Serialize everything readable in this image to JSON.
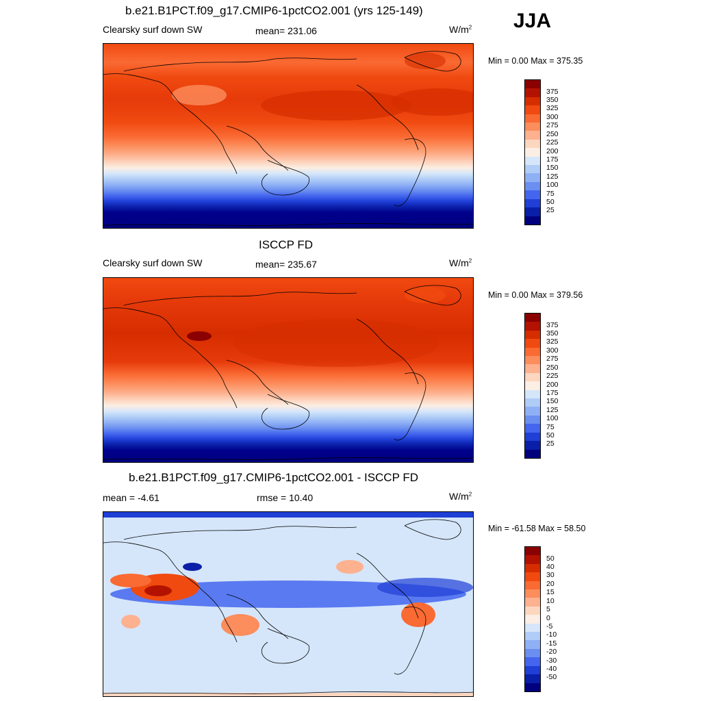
{
  "season": "JJA",
  "panels": [
    {
      "title": "b.e21.B1PCT.f09_g17.CMIP6-1pctCO2.001 (yrs 125-149)",
      "variable": "Clearsky surf down SW",
      "stat": "mean= 231.06",
      "units": "W/m",
      "units_exp": "2",
      "minmax": "Min =   0.00 Max = 375.35",
      "colorbar": {
        "labels": [
          "375",
          "350",
          "325",
          "300",
          "275",
          "250",
          "225",
          "200",
          "175",
          "150",
          "125",
          "100",
          "75",
          "50",
          "25"
        ],
        "colors": [
          "#8b0000",
          "#b41200",
          "#d62d00",
          "#f04a10",
          "#fa6a33",
          "#fc8d5c",
          "#fdb18f",
          "#fdd6c0",
          "#fbeee4",
          "#d5e6fa",
          "#b0cdf7",
          "#8fb0f5",
          "#6b8ff0",
          "#4466ee",
          "#1f3fd6",
          "#0a1fa8",
          "#00007f"
        ]
      },
      "map_type": "sequential"
    },
    {
      "title": "ISCCP FD",
      "variable": "Clearsky surf down SW",
      "stat": "mean= 235.67",
      "units": "W/m",
      "units_exp": "2",
      "minmax": "Min =   0.00 Max = 379.56",
      "colorbar": {
        "labels": [
          "375",
          "350",
          "325",
          "300",
          "275",
          "250",
          "225",
          "200",
          "175",
          "150",
          "125",
          "100",
          "75",
          "50",
          "25"
        ],
        "colors": [
          "#8b0000",
          "#b41200",
          "#d62d00",
          "#f04a10",
          "#fa6a33",
          "#fc8d5c",
          "#fdb18f",
          "#fdd6c0",
          "#fbeee4",
          "#d5e6fa",
          "#b0cdf7",
          "#8fb0f5",
          "#6b8ff0",
          "#4466ee",
          "#1f3fd6",
          "#0a1fa8",
          "#00007f"
        ]
      },
      "map_type": "sequential"
    },
    {
      "title": "b.e21.B1PCT.f09_g17.CMIP6-1pctCO2.001 - ISCCP FD",
      "variable": "mean =  -4.61",
      "stat": "rmse =  10.40",
      "units": "W/m",
      "units_exp": "2",
      "minmax": "Min = -61.58 Max =  58.50",
      "colorbar": {
        "labels": [
          "50",
          "40",
          "30",
          "20",
          "15",
          "10",
          "5",
          "0",
          "-5",
          "-10",
          "-15",
          "-20",
          "-30",
          "-40",
          "-50"
        ],
        "colors": [
          "#8b0000",
          "#b41200",
          "#d62d00",
          "#f04a10",
          "#fa6a33",
          "#fc8d5c",
          "#fdb18f",
          "#fdd6c0",
          "#fbeee4",
          "#d5e6fa",
          "#b0cdf7",
          "#8fb0f5",
          "#6b8ff0",
          "#4466ee",
          "#1f3fd6",
          "#0a1fa8",
          "#00007f"
        ]
      },
      "map_type": "difference"
    }
  ]
}
